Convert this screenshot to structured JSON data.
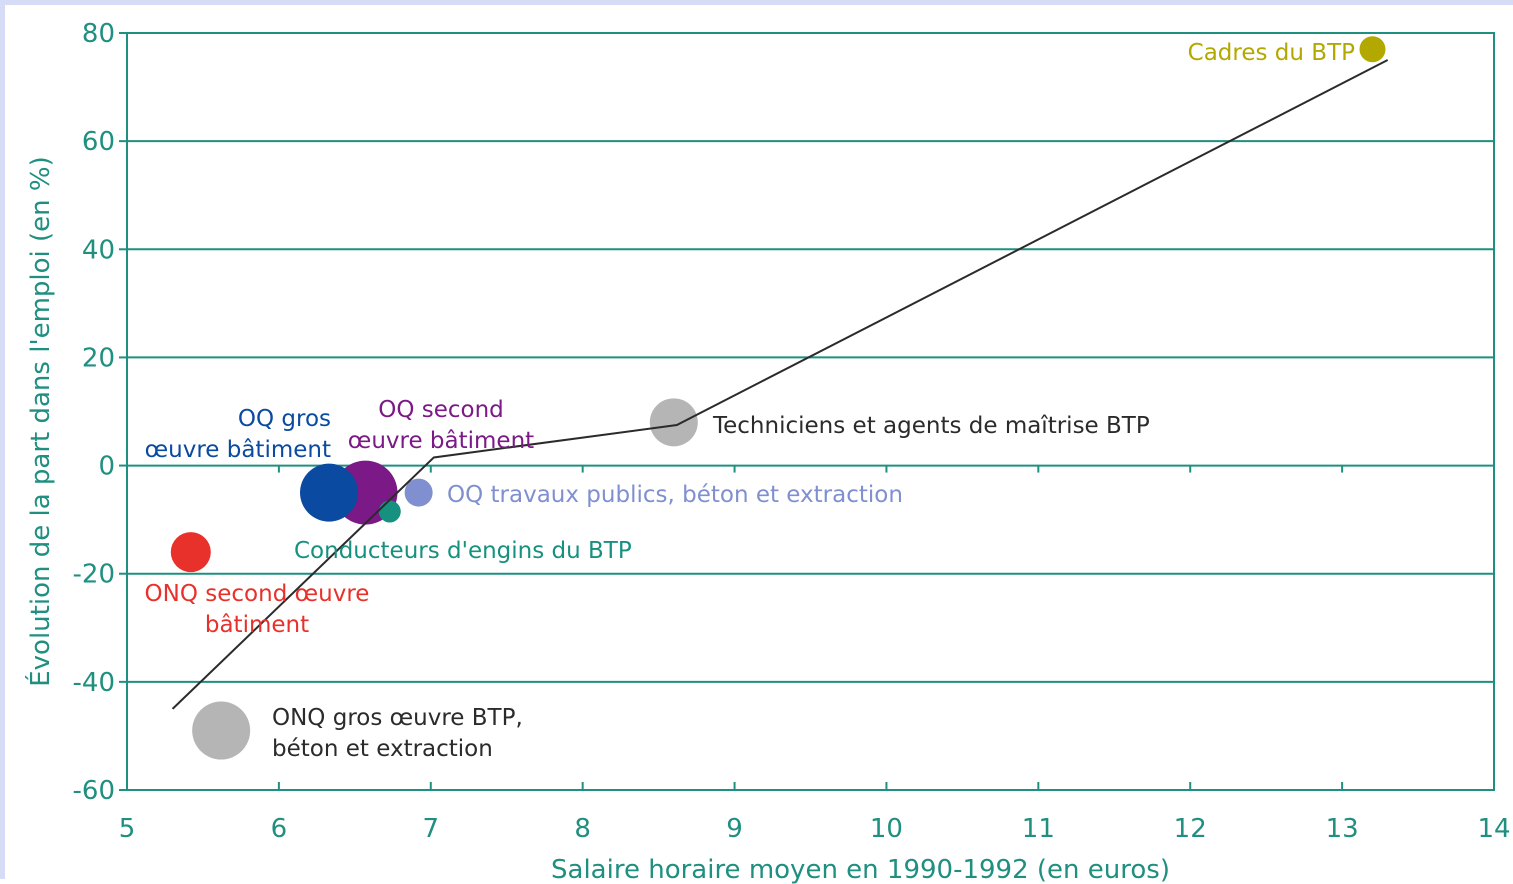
{
  "chart_data": {
    "type": "scatter",
    "xlabel": "Salaire horaire moyen en 1990-1992 (en euros)",
    "ylabel": "Évolution de la part dans l'emploi (en %)",
    "xlim": [
      5,
      14
    ],
    "ylim": [
      -60,
      80
    ],
    "xticks": [
      "5",
      "6",
      "7",
      "8",
      "9",
      "10",
      "11",
      "12",
      "13",
      "14"
    ],
    "yticks": [
      "80",
      "60",
      "40",
      "20",
      "0",
      "-20",
      "-40",
      "-60"
    ],
    "grid": "horizontal",
    "colors": {
      "axis": "#1f8f80",
      "grid": "#1f8f80",
      "trend": "#2b2b2b"
    },
    "points": [
      {
        "label": [
          "Cadres du BTP"
        ],
        "x": 13.2,
        "y": 77,
        "size": 13,
        "color": "#b3a800",
        "label_color": "#b3a800"
      },
      {
        "label": [
          "Techniciens et agents de maîtrise BTP"
        ],
        "x": 8.6,
        "y": 8,
        "size": 24,
        "color": "#b5b5b5",
        "label_color": "#2b2b2b"
      },
      {
        "label": [
          "OQ second",
          "œuvre bâtiment"
        ],
        "x": 6.57,
        "y": -5,
        "size": 32,
        "color": "#7b1a86",
        "label_color": "#7b1a86"
      },
      {
        "label": [
          "OQ gros",
          "œuvre bâtiment"
        ],
        "x": 6.33,
        "y": -5,
        "size": 29,
        "color": "#0a4aa0",
        "label_color": "#0a4aa0"
      },
      {
        "label": [
          "OQ travaux publics, béton et extraction"
        ],
        "x": 6.92,
        "y": -5,
        "size": 14,
        "color": "#7f8fd0",
        "label_color": "#7f8fd0"
      },
      {
        "label": [
          "Conducteurs d'engins du BTP"
        ],
        "x": 6.73,
        "y": -8.5,
        "size": 11,
        "color": "#17917f",
        "label_color": "#17917f"
      },
      {
        "label": [
          "ONQ second œuvre",
          "bâtiment"
        ],
        "x": 5.42,
        "y": -16,
        "size": 20,
        "color": "#e8312a",
        "label_color": "#e8312a"
      },
      {
        "label": [
          "ONQ gros œuvre BTP,",
          "béton et extraction"
        ],
        "x": 5.62,
        "y": -49,
        "size": 29,
        "color": "#b5b5b5",
        "label_color": "#2b2b2b"
      }
    ],
    "trend_line": [
      {
        "x": 5.3,
        "y": -45
      },
      {
        "x": 7.02,
        "y": 1.5
      },
      {
        "x": 8.62,
        "y": 7.5
      },
      {
        "x": 13.3,
        "y": 75
      }
    ]
  }
}
